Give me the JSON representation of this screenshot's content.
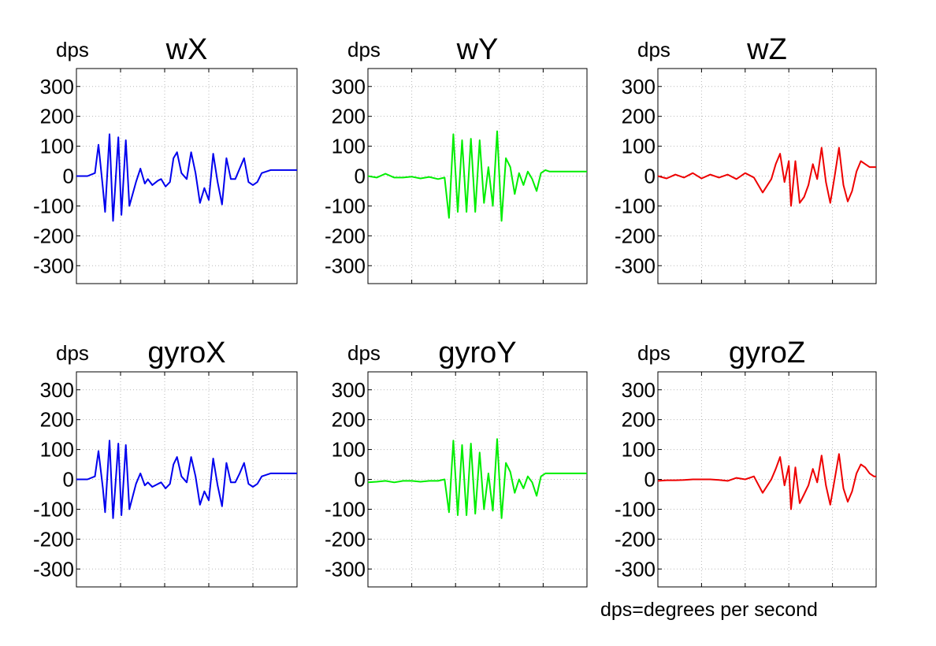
{
  "footnote": "dps=degrees per second",
  "chart_data": [
    {
      "type": "line",
      "title": "wX",
      "ylabel": "dps",
      "ylim": [
        -360,
        360
      ],
      "yticks": [
        300,
        200,
        100,
        0,
        -100,
        -200,
        -300
      ],
      "grid": true,
      "color": "#0000ee",
      "series": [
        {
          "x": [
            0,
            0.25,
            0.42,
            0.5,
            0.6,
            0.65,
            0.75,
            0.83,
            0.95,
            1.02,
            1.12,
            1.2,
            1.35,
            1.45,
            1.55,
            1.62,
            1.72,
            1.85,
            1.92,
            2.02,
            2.12,
            2.2,
            2.28,
            2.38,
            2.5,
            2.6,
            2.7,
            2.8,
            2.9,
            3.0,
            3.1,
            3.2,
            3.3,
            3.4,
            3.5,
            3.6,
            3.7,
            3.8,
            3.9,
            4.0,
            4.1,
            4.2,
            4.3,
            4.4,
            4.5,
            4.6,
            4.7,
            4.8,
            4.9,
            5.0
          ],
          "y": [
            0,
            0,
            10,
            105,
            -40,
            -120,
            140,
            -150,
            130,
            -130,
            120,
            -100,
            -20,
            25,
            -25,
            -10,
            -30,
            -15,
            -10,
            -35,
            -20,
            60,
            80,
            10,
            -10,
            80,
            10,
            -90,
            -40,
            -80,
            75,
            -20,
            -95,
            60,
            -10,
            -10,
            25,
            60,
            -20,
            -30,
            -20,
            10,
            15,
            20,
            20,
            20,
            20,
            20,
            20,
            20
          ]
        }
      ]
    },
    {
      "type": "line",
      "title": "wY",
      "ylabel": "dps",
      "ylim": [
        -360,
        360
      ],
      "yticks": [
        300,
        200,
        100,
        0,
        -100,
        -200,
        -300
      ],
      "grid": true,
      "color": "#00ee00",
      "series": [
        {
          "x": [
            0,
            0.2,
            0.4,
            0.6,
            0.8,
            1.0,
            1.2,
            1.4,
            1.6,
            1.75,
            1.85,
            1.95,
            2.05,
            2.15,
            2.25,
            2.35,
            2.45,
            2.55,
            2.65,
            2.75,
            2.85,
            2.95,
            3.05,
            3.15,
            3.25,
            3.35,
            3.45,
            3.55,
            3.65,
            3.75,
            3.85,
            3.95,
            4.05,
            4.15,
            4.25,
            4.35,
            4.45,
            4.55,
            4.65,
            4.75,
            4.85,
            4.95,
            5.0
          ],
          "y": [
            0,
            -5,
            8,
            -5,
            -5,
            -2,
            -8,
            -3,
            -10,
            -5,
            -140,
            140,
            -120,
            120,
            -120,
            125,
            -120,
            120,
            -90,
            30,
            -100,
            150,
            -150,
            60,
            30,
            -60,
            10,
            -30,
            15,
            -10,
            -50,
            10,
            20,
            15,
            15,
            15,
            15,
            15,
            15,
            15,
            15,
            15,
            15
          ]
        }
      ]
    },
    {
      "type": "line",
      "title": "wZ",
      "ylabel": "dps",
      "ylim": [
        -360,
        360
      ],
      "yticks": [
        300,
        200,
        100,
        0,
        -100,
        -200,
        -300
      ],
      "grid": true,
      "color": "#ee0000",
      "series": [
        {
          "x": [
            0,
            0.2,
            0.4,
            0.6,
            0.8,
            1.0,
            1.2,
            1.4,
            1.6,
            1.8,
            2.0,
            2.2,
            2.4,
            2.6,
            2.7,
            2.8,
            2.9,
            3.0,
            3.05,
            3.15,
            3.25,
            3.35,
            3.45,
            3.55,
            3.65,
            3.75,
            3.85,
            3.95,
            4.05,
            4.15,
            4.25,
            4.35,
            4.45,
            4.55,
            4.65,
            4.75,
            4.85,
            4.95,
            5.0
          ],
          "y": [
            0,
            -8,
            5,
            -5,
            10,
            -8,
            5,
            -5,
            5,
            -10,
            10,
            -5,
            -55,
            -10,
            40,
            75,
            -20,
            50,
            -100,
            50,
            -90,
            -70,
            -30,
            40,
            -10,
            95,
            -20,
            -90,
            0,
            95,
            -30,
            -85,
            -50,
            15,
            50,
            40,
            30,
            30,
            30
          ]
        }
      ]
    },
    {
      "type": "line",
      "title": "gyroX",
      "ylabel": "dps",
      "ylim": [
        -360,
        360
      ],
      "yticks": [
        300,
        200,
        100,
        0,
        -100,
        -200,
        -300
      ],
      "grid": true,
      "color": "#0000ee",
      "series": [
        {
          "x": [
            0,
            0.25,
            0.42,
            0.5,
            0.6,
            0.65,
            0.75,
            0.83,
            0.95,
            1.02,
            1.12,
            1.2,
            1.35,
            1.45,
            1.55,
            1.62,
            1.72,
            1.85,
            1.92,
            2.02,
            2.12,
            2.2,
            2.28,
            2.38,
            2.5,
            2.6,
            2.7,
            2.8,
            2.9,
            3.0,
            3.1,
            3.2,
            3.3,
            3.4,
            3.5,
            3.6,
            3.7,
            3.8,
            3.9,
            4.0,
            4.1,
            4.2,
            4.3,
            4.4,
            4.5,
            4.6,
            4.7,
            4.8,
            4.9,
            5.0
          ],
          "y": [
            0,
            0,
            10,
            95,
            -30,
            -110,
            130,
            -130,
            120,
            -120,
            115,
            -100,
            -15,
            20,
            -20,
            -10,
            -25,
            -15,
            -10,
            -30,
            -15,
            50,
            75,
            10,
            -10,
            75,
            10,
            -85,
            -40,
            -70,
            70,
            -20,
            -90,
            55,
            -10,
            -10,
            20,
            55,
            -15,
            -25,
            -15,
            10,
            15,
            20,
            20,
            20,
            20,
            20,
            20,
            20
          ]
        }
      ]
    },
    {
      "type": "line",
      "title": "gyroY",
      "ylabel": "dps",
      "ylim": [
        -360,
        360
      ],
      "yticks": [
        300,
        200,
        100,
        0,
        -100,
        -200,
        -300
      ],
      "grid": true,
      "color": "#00ee00",
      "series": [
        {
          "x": [
            0,
            0.2,
            0.4,
            0.6,
            0.8,
            1.0,
            1.2,
            1.4,
            1.6,
            1.75,
            1.85,
            1.95,
            2.05,
            2.15,
            2.25,
            2.35,
            2.45,
            2.55,
            2.65,
            2.75,
            2.85,
            2.95,
            3.05,
            3.15,
            3.25,
            3.35,
            3.45,
            3.55,
            3.65,
            3.75,
            3.85,
            3.95,
            4.05,
            4.15,
            4.25,
            4.35,
            4.45,
            4.55,
            4.65,
            4.75,
            4.85,
            4.95,
            5.0
          ],
          "y": [
            -10,
            -8,
            -5,
            -10,
            -5,
            -5,
            -8,
            -5,
            -5,
            0,
            -110,
            130,
            -120,
            115,
            -120,
            120,
            -115,
            90,
            -100,
            20,
            -105,
            135,
            -130,
            55,
            25,
            -45,
            0,
            -30,
            10,
            -10,
            -55,
            10,
            20,
            20,
            20,
            20,
            20,
            20,
            20,
            20,
            20,
            20,
            20
          ]
        }
      ]
    },
    {
      "type": "line",
      "title": "gyroZ",
      "ylabel": "dps",
      "ylim": [
        -360,
        360
      ],
      "yticks": [
        300,
        200,
        100,
        0,
        -100,
        -200,
        -300
      ],
      "grid": true,
      "color": "#ee0000",
      "series": [
        {
          "x": [
            0,
            0.2,
            0.4,
            0.6,
            0.8,
            1.0,
            1.2,
            1.4,
            1.6,
            1.8,
            2.0,
            2.2,
            2.4,
            2.6,
            2.7,
            2.8,
            2.9,
            3.0,
            3.05,
            3.15,
            3.25,
            3.35,
            3.45,
            3.55,
            3.65,
            3.75,
            3.85,
            3.95,
            4.05,
            4.15,
            4.25,
            4.35,
            4.45,
            4.55,
            4.65,
            4.75,
            4.85,
            4.95,
            5.0
          ],
          "y": [
            -5,
            -3,
            -3,
            -2,
            0,
            0,
            0,
            -2,
            -5,
            5,
            0,
            10,
            -45,
            0,
            35,
            75,
            -20,
            45,
            -100,
            40,
            -80,
            -50,
            -20,
            35,
            -10,
            80,
            -20,
            -85,
            0,
            85,
            -30,
            -75,
            -40,
            20,
            50,
            40,
            20,
            10,
            10
          ]
        }
      ]
    }
  ]
}
